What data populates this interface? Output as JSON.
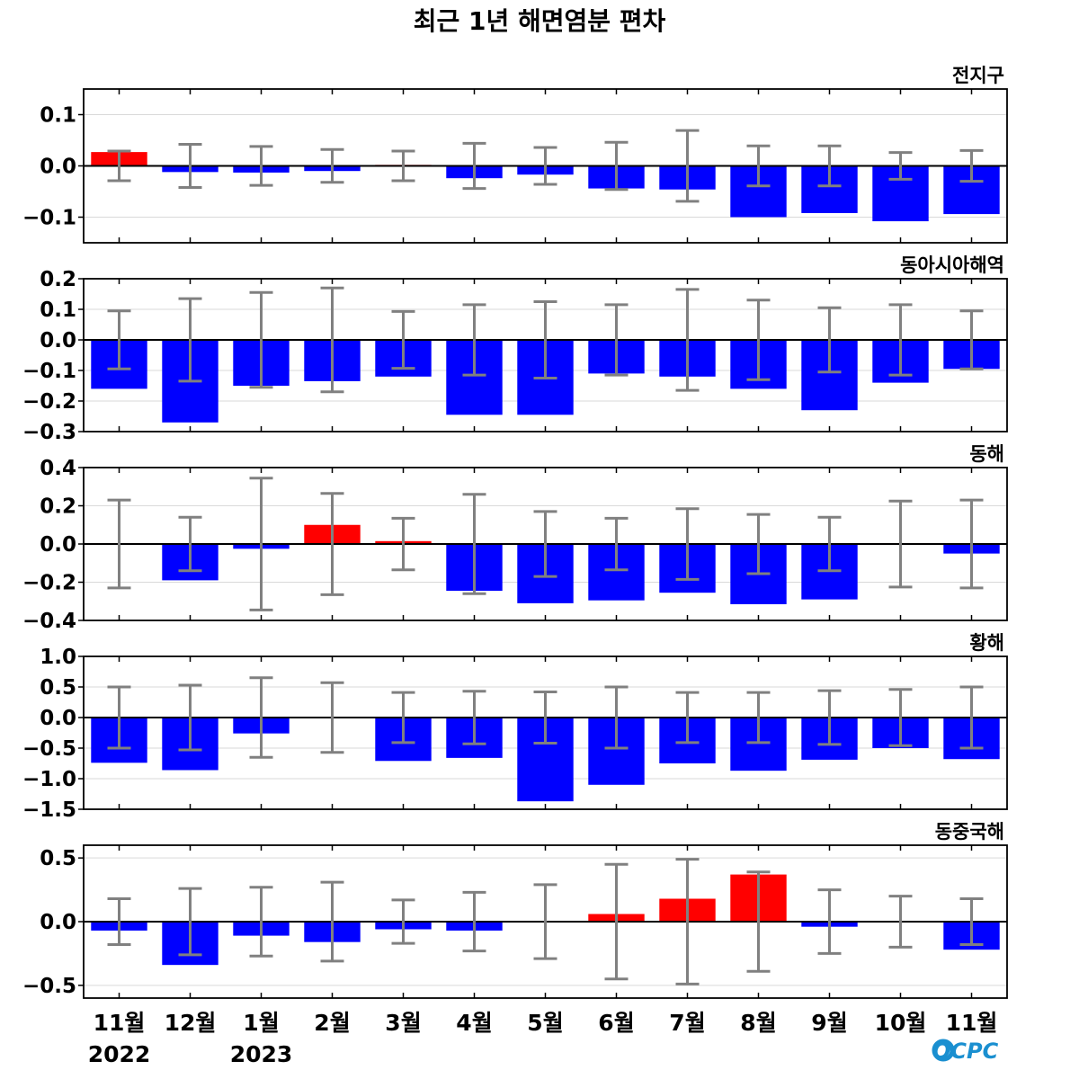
{
  "title": "최근 1년 해면염분 편차",
  "logo_text": "OCPC",
  "colors": {
    "positive": "#ff0000",
    "negative": "#0000ff",
    "error_bar": "#808080",
    "zero_line": "#000000",
    "grid": "#d9d9d9"
  },
  "chart_data": [
    {
      "type": "bar",
      "title": "전지구",
      "categories": [
        "11월",
        "12월",
        "1월",
        "2월",
        "3월",
        "4월",
        "5월",
        "6월",
        "7월",
        "8월",
        "9월",
        "10월",
        "11월"
      ],
      "year_labels": [
        "2022",
        "",
        "2023",
        "",
        "",
        "",
        "",
        "",
        "",
        "",
        "",
        "",
        ""
      ],
      "values": [
        0.027,
        -0.012,
        -0.013,
        -0.01,
        0.002,
        -0.024,
        -0.017,
        -0.044,
        -0.046,
        -0.1,
        -0.092,
        -0.108,
        -0.094
      ],
      "errors": [
        0.029,
        0.042,
        0.038,
        0.032,
        0.029,
        0.044,
        0.036,
        0.046,
        0.069,
        0.039,
        0.039,
        0.026,
        0.03
      ],
      "ylim": [
        -0.15,
        0.15
      ],
      "yticks": [
        -0.1,
        0.0,
        0.1
      ],
      "ytick_labels": [
        "−0.1",
        "0.0",
        "0.1"
      ],
      "grid": true
    },
    {
      "type": "bar",
      "title": "동아시아해역",
      "categories": [
        "11월",
        "12월",
        "1월",
        "2월",
        "3월",
        "4월",
        "5월",
        "6월",
        "7월",
        "8월",
        "9월",
        "10월",
        "11월"
      ],
      "values": [
        -0.16,
        -0.27,
        -0.15,
        -0.135,
        -0.12,
        -0.245,
        -0.245,
        -0.11,
        -0.12,
        -0.16,
        -0.23,
        -0.14,
        -0.095
      ],
      "errors": [
        0.095,
        0.135,
        0.155,
        0.17,
        0.093,
        0.115,
        0.125,
        0.115,
        0.165,
        0.13,
        0.105,
        0.115,
        0.095
      ],
      "ylim": [
        -0.3,
        0.2
      ],
      "yticks": [
        -0.3,
        -0.2,
        -0.1,
        0.0,
        0.1,
        0.2
      ],
      "ytick_labels": [
        "−0.3",
        "−0.2",
        "−0.1",
        "0.0",
        "0.1",
        "0.2"
      ],
      "grid": true
    },
    {
      "type": "bar",
      "title": "동해",
      "categories": [
        "11월",
        "12월",
        "1월",
        "2월",
        "3월",
        "4월",
        "5월",
        "6월",
        "7월",
        "8월",
        "9월",
        "10월",
        "11월"
      ],
      "values": [
        0.005,
        -0.19,
        -0.025,
        0.1,
        0.015,
        -0.245,
        -0.31,
        -0.295,
        -0.255,
        -0.315,
        -0.29,
        0.005,
        -0.05
      ],
      "errors": [
        0.23,
        0.14,
        0.345,
        0.265,
        0.135,
        0.26,
        0.17,
        0.135,
        0.185,
        0.155,
        0.14,
        0.225,
        0.23
      ],
      "ylim": [
        -0.4,
        0.4
      ],
      "yticks": [
        -0.4,
        -0.2,
        0.0,
        0.2,
        0.4
      ],
      "ytick_labels": [
        "−0.4",
        "−0.2",
        "0.0",
        "0.2",
        "0.4"
      ],
      "grid": true
    },
    {
      "type": "bar",
      "title": "황해",
      "categories": [
        "11월",
        "12월",
        "1월",
        "2월",
        "3월",
        "4월",
        "5월",
        "6월",
        "7월",
        "8월",
        "9월",
        "10월",
        "11월"
      ],
      "values": [
        -0.74,
        -0.86,
        -0.26,
        0.01,
        -0.71,
        -0.66,
        -1.37,
        -1.1,
        -0.75,
        -0.87,
        -0.69,
        -0.5,
        -0.68
      ],
      "errors": [
        0.5,
        0.53,
        0.65,
        0.57,
        0.41,
        0.43,
        0.42,
        0.5,
        0.41,
        0.41,
        0.44,
        0.46,
        0.5
      ],
      "ylim": [
        -1.5,
        1.0
      ],
      "yticks": [
        -1.5,
        -1.0,
        -0.5,
        0.0,
        0.5,
        1.0
      ],
      "ytick_labels": [
        "−1.5",
        "−1.0",
        "−0.5",
        "0.0",
        "0.5",
        "1.0"
      ],
      "grid": true
    },
    {
      "type": "bar",
      "title": "동중국해",
      "categories": [
        "11월",
        "12월",
        "1월",
        "2월",
        "3월",
        "4월",
        "5월",
        "6월",
        "7월",
        "8월",
        "9월",
        "10월",
        "11월"
      ],
      "values": [
        -0.07,
        -0.34,
        -0.11,
        -0.16,
        -0.06,
        -0.07,
        0.005,
        0.06,
        0.18,
        0.37,
        -0.04,
        0.005,
        -0.22
      ],
      "errors": [
        0.18,
        0.26,
        0.27,
        0.31,
        0.17,
        0.23,
        0.29,
        0.45,
        0.49,
        0.39,
        0.25,
        0.2,
        0.18
      ],
      "ylim": [
        -0.6,
        0.6
      ],
      "yticks": [
        -0.5,
        0.0,
        0.5
      ],
      "ytick_labels": [
        "−0.5",
        "0.0",
        "0.5"
      ],
      "grid": true
    }
  ]
}
